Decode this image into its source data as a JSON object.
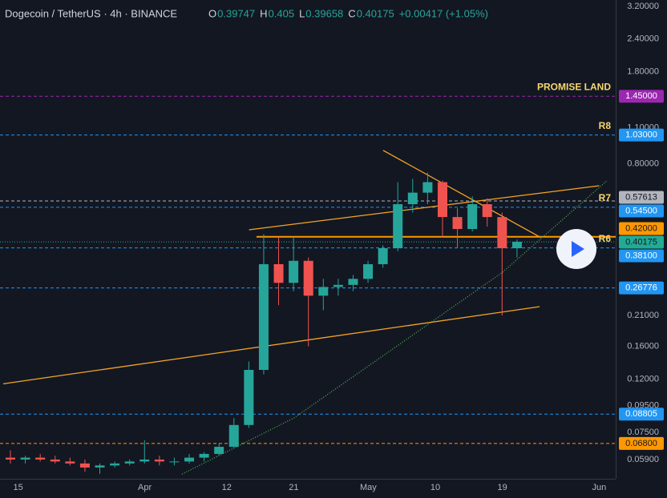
{
  "header": {
    "title": "Dogecoin / TetherUS · 4h · BINANCE",
    "ohlc": [
      {
        "label": "O",
        "value": 0.39747
      },
      {
        "label": "H",
        "value": 0.405
      },
      {
        "label": "L",
        "value": 0.39658
      },
      {
        "label": "C",
        "value": 0.40175
      }
    ],
    "change": "+0.00417 (+1.05%)"
  },
  "chart_data": {
    "type": "candlestick",
    "log_scale": true,
    "grid": true,
    "up_color": "#26a69a",
    "down_color": "#ef5350",
    "x": [
      "03-13",
      "03-15",
      "03-17",
      "03-19",
      "03-21",
      "03-23",
      "03-25",
      "03-27",
      "03-29",
      "03-31",
      "04-02",
      "04-04",
      "04-06",
      "04-08",
      "04-10",
      "04-12",
      "04-14",
      "04-16",
      "04-18",
      "04-20",
      "04-22",
      "04-24",
      "04-26",
      "04-28",
      "04-30",
      "05-02",
      "05-04",
      "05-06",
      "05-08",
      "05-10",
      "05-12",
      "05-14",
      "05-16",
      "05-18",
      "05-20"
    ],
    "open": [
      0.06,
      0.059,
      0.06,
      0.059,
      0.058,
      0.057,
      0.055,
      0.056,
      0.057,
      0.058,
      0.059,
      0.058,
      0.058,
      0.06,
      0.062,
      0.066,
      0.08,
      0.13,
      0.33,
      0.28,
      0.34,
      0.25,
      0.27,
      0.275,
      0.29,
      0.33,
      0.38,
      0.56,
      0.62,
      0.68,
      0.5,
      0.45,
      0.56,
      0.5,
      0.38
    ],
    "high": [
      0.064,
      0.061,
      0.062,
      0.061,
      0.06,
      0.059,
      0.057,
      0.058,
      0.059,
      0.07,
      0.061,
      0.06,
      0.062,
      0.063,
      0.068,
      0.085,
      0.14,
      0.43,
      0.42,
      0.42,
      0.35,
      0.29,
      0.29,
      0.3,
      0.34,
      0.39,
      0.68,
      0.7,
      0.74,
      0.69,
      0.54,
      0.6,
      0.59,
      0.52,
      0.41
    ],
    "low": [
      0.057,
      0.057,
      0.058,
      0.057,
      0.056,
      0.053,
      0.052,
      0.055,
      0.056,
      0.057,
      0.056,
      0.056,
      0.057,
      0.058,
      0.061,
      0.065,
      0.078,
      0.125,
      0.23,
      0.26,
      0.16,
      0.22,
      0.25,
      0.26,
      0.28,
      0.32,
      0.37,
      0.52,
      0.56,
      0.42,
      0.38,
      0.44,
      0.46,
      0.21,
      0.35
    ],
    "close": [
      0.059,
      0.06,
      0.059,
      0.058,
      0.057,
      0.055,
      0.056,
      0.057,
      0.058,
      0.059,
      0.058,
      0.058,
      0.06,
      0.062,
      0.066,
      0.08,
      0.13,
      0.33,
      0.28,
      0.34,
      0.25,
      0.27,
      0.275,
      0.29,
      0.33,
      0.38,
      0.56,
      0.62,
      0.68,
      0.5,
      0.45,
      0.56,
      0.5,
      0.38,
      0.402
    ],
    "xlim": [
      "03-13",
      "06-03"
    ],
    "xticks": [
      {
        "value": "03-15",
        "label": "15"
      },
      {
        "value": "04-01",
        "label": "Apr"
      },
      {
        "value": "04-12",
        "label": "12"
      },
      {
        "value": "04-21",
        "label": "21"
      },
      {
        "value": "05-01",
        "label": "May"
      },
      {
        "value": "05-10",
        "label": "10"
      },
      {
        "value": "05-19",
        "label": "19"
      },
      {
        "value": "06-01",
        "label": "Jun"
      }
    ],
    "ylim": [
      0.0498,
      3.386
    ],
    "yticks": [
      {
        "value": 3.2,
        "label": "3.20000"
      },
      {
        "value": 2.4,
        "label": "2.40000"
      },
      {
        "value": 1.8,
        "label": "1.80000"
      },
      {
        "value": 1.1,
        "label": "1.10000"
      },
      {
        "value": 0.8,
        "label": "0.80000"
      },
      {
        "value": 0.21,
        "label": "0.21000"
      },
      {
        "value": 0.16,
        "label": "0.16000"
      },
      {
        "value": 0.12,
        "label": "0.12000"
      },
      {
        "value": 0.095,
        "label": "0.09500"
      },
      {
        "value": 0.075,
        "label": "0.07500"
      },
      {
        "value": 0.059,
        "label": "0.05900"
      }
    ],
    "levels": [
      {
        "value": 1.45,
        "label": "1.45000",
        "name": "PROMISE LAND",
        "color": "#9c27b0",
        "style": "dashed"
      },
      {
        "value": 1.03,
        "label": "1.03000",
        "name": "R8",
        "color": "#2196f3",
        "style": "dashed"
      },
      {
        "value": 0.57613,
        "label": "0.57613",
        "color": "#b2b5be",
        "style": "dashed"
      },
      {
        "value": 0.545,
        "label": "0.54500",
        "name": "R7",
        "color": "#2196f3",
        "style": "dashed"
      },
      {
        "value": 0.42,
        "label": "0.42000",
        "color": "#ff9800",
        "style": "solid",
        "from": "04-16"
      },
      {
        "value": 0.40175,
        "label": "0.40175",
        "color": "#22ab94",
        "style": "dotted"
      },
      {
        "value": 0.381,
        "label": "0.38100",
        "name": "R6",
        "color": "#2196f3",
        "style": "dashed"
      },
      {
        "value": 0.26776,
        "label": "0.26776",
        "color": "#2196f3",
        "style": "dashed"
      },
      {
        "value": 0.08805,
        "label": "0.08805",
        "color": "#2196f3",
        "style": "dashed"
      },
      {
        "value": 0.068,
        "label": "0.06800",
        "color": "#ff9800",
        "style": "dashed"
      }
    ],
    "trendlines": [
      {
        "color": "#f5a623",
        "style": "solid",
        "x": [
          "03-13",
          "05-24"
        ],
        "values": [
          0.115,
          0.227
        ]
      },
      {
        "color": "#f5a623",
        "style": "solid",
        "x": [
          "04-15",
          "06-01"
        ],
        "values": [
          0.447,
          0.659
        ]
      },
      {
        "color": "#f5a623",
        "style": "solid",
        "x": [
          "05-03",
          "05-24"
        ],
        "values": [
          0.9,
          0.42
        ]
      },
      {
        "color": "#4caf50",
        "style": "dotted",
        "x": [
          "04-06",
          "04-21",
          "05-09",
          "05-19",
          "06-02"
        ],
        "values": [
          0.0519,
          0.085,
          0.194,
          0.307,
          0.687
        ]
      }
    ]
  }
}
